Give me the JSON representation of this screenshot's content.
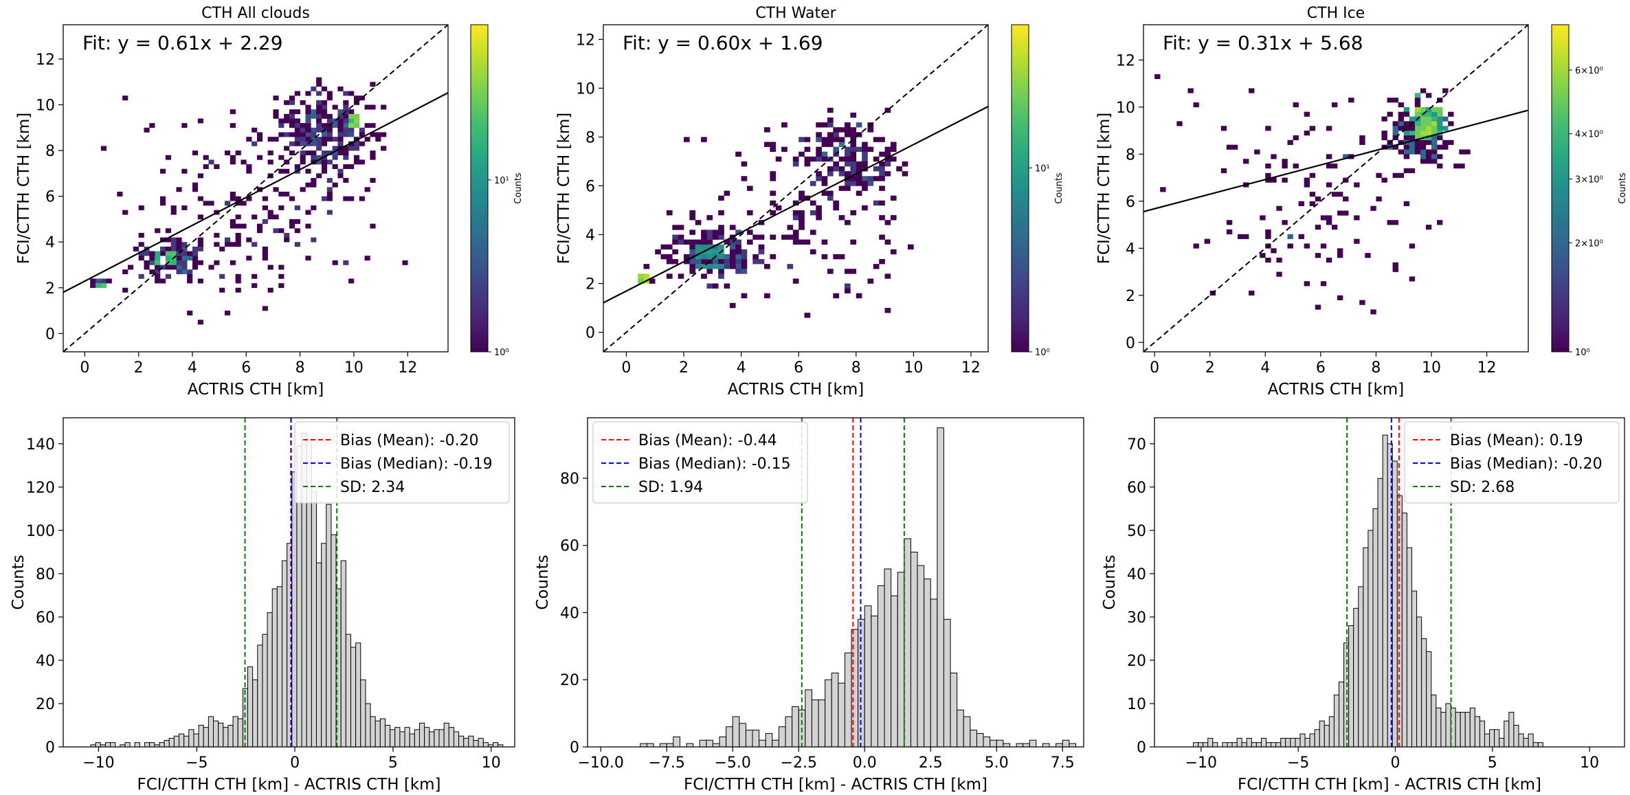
{
  "chart_data": [
    {
      "type": "heatmap",
      "title": "CTH All clouds",
      "xlabel": "ACTRIS CTH [km]",
      "ylabel": "FCI/CTTH CTH [km]",
      "xlim": [
        -0.8,
        13.5
      ],
      "ylim": [
        -0.8,
        13.5
      ],
      "xticks": [
        0,
        2,
        4,
        6,
        8,
        10,
        12
      ],
      "yticks": [
        0,
        2,
        4,
        6,
        8,
        10,
        12
      ],
      "fit_text": "Fit: y = 0.61x + 2.29",
      "fit": {
        "slope": 0.61,
        "intercept": 2.29
      },
      "one_to_one_line": true,
      "colorbar": {
        "label": "Counts",
        "scale": "log",
        "ticks": [
          "10⁰",
          "10¹"
        ],
        "tick_values": [
          1,
          10
        ],
        "max": 80
      },
      "dense_regions": [
        {
          "x": [
            9.8,
            10.2
          ],
          "y": [
            9.2,
            9.6
          ],
          "count": 40
        },
        {
          "x": [
            2.8,
            3.4
          ],
          "y": [
            3.0,
            3.6
          ],
          "count": 25
        },
        {
          "x": [
            0.4,
            0.8
          ],
          "y": [
            2.1,
            2.3
          ],
          "count": 40
        }
      ]
    },
    {
      "type": "heatmap",
      "title": "CTH Water",
      "xlabel": "ACTRIS CTH [km]",
      "ylabel": "FCI/CTTH CTH [km]",
      "xlim": [
        -0.8,
        12.6
      ],
      "ylim": [
        -0.8,
        12.6
      ],
      "xticks": [
        0,
        2,
        4,
        6,
        8,
        10,
        12
      ],
      "yticks": [
        0,
        2,
        4,
        6,
        8,
        10,
        12
      ],
      "fit_text": "Fit: y = 0.60x + 1.69",
      "fit": {
        "slope": 0.6,
        "intercept": 1.69
      },
      "one_to_one_line": true,
      "colorbar": {
        "label": "Counts",
        "scale": "log",
        "ticks": [
          "10⁰",
          "10¹"
        ],
        "tick_values": [
          1,
          10
        ],
        "max": 60
      },
      "dense_regions": [
        {
          "x": [
            0.4,
            0.8
          ],
          "y": [
            2.0,
            2.3
          ],
          "count": 50
        },
        {
          "x": [
            2.5,
            3.5
          ],
          "y": [
            2.8,
            3.5
          ],
          "count": 12
        }
      ]
    },
    {
      "type": "heatmap",
      "title": "CTH Ice",
      "xlabel": "ACTRIS CTH [km]",
      "ylabel": "FCI/CTTH CTH [km]",
      "xlim": [
        -0.4,
        13.5
      ],
      "ylim": [
        -0.4,
        13.5
      ],
      "xticks": [
        0,
        2,
        4,
        6,
        8,
        10,
        12
      ],
      "yticks": [
        0,
        2,
        4,
        6,
        8,
        10,
        12
      ],
      "fit_text": "Fit: y = 0.31x + 5.68",
      "fit": {
        "slope": 0.31,
        "intercept": 5.68
      },
      "one_to_one_line": true,
      "colorbar": {
        "label": "Counts",
        "scale": "log",
        "ticks": [
          "10⁰",
          "2×10⁰",
          "3×10⁰",
          "4×10⁰",
          "6×10⁰"
        ],
        "tick_values": [
          1,
          2,
          3,
          4,
          6
        ],
        "max": 8
      },
      "dense_regions": [
        {
          "x": [
            9.6,
            10.4
          ],
          "y": [
            8.8,
            10.0
          ],
          "count": 6
        }
      ]
    },
    {
      "type": "bar",
      "xlabel": "FCI/CTTH CTH [km] - ACTRIS CTH [km]",
      "ylabel": "Counts",
      "xlim": [
        -11.8,
        11.2
      ],
      "ylim": [
        0,
        152
      ],
      "xticks": [
        -10,
        -5,
        0,
        5,
        10
      ],
      "yticks": [
        0,
        20,
        40,
        60,
        80,
        100,
        120,
        140
      ],
      "bin_start": -10.4,
      "bin_width": 0.25,
      "values": [
        1,
        2,
        1,
        2,
        2,
        0,
        1,
        2,
        0,
        2,
        0,
        2,
        2,
        1,
        2,
        3,
        4,
        5,
        6,
        5,
        8,
        6,
        10,
        9,
        14,
        12,
        11,
        9,
        10,
        14,
        13,
        27,
        37,
        31,
        47,
        52,
        62,
        73,
        74,
        86,
        94,
        127,
        139,
        145,
        142,
        118,
        85,
        94,
        112,
        98,
        73,
        86,
        52,
        46,
        48,
        31,
        20,
        14,
        12,
        13,
        10,
        8,
        9,
        7,
        9,
        6,
        8,
        11,
        9,
        7,
        8,
        8,
        11,
        9,
        7,
        5,
        4,
        5,
        3,
        4,
        2,
        1,
        2,
        1
      ],
      "lines": [
        {
          "name": "Bias (Mean): -0.20",
          "x": -0.2,
          "color": "#ff0000"
        },
        {
          "name": "Bias (Median): -0.19",
          "x": -0.19,
          "color": "#0000ff"
        },
        {
          "name": "SD: 2.34",
          "x": [
            -2.54,
            2.14
          ],
          "color": "#008000"
        }
      ],
      "legend": "upper right"
    },
    {
      "type": "bar",
      "xlabel": "FCI/CTTH CTH [km] - ACTRIS CTH [km]",
      "ylabel": "Counts",
      "xlim": [
        -10.5,
        8.3
      ],
      "ylim": [
        0,
        98
      ],
      "xticks": [
        -10.0,
        -7.5,
        -5.0,
        -2.5,
        0.0,
        2.5,
        5.0,
        7.5
      ],
      "xtick_labels": [
        "−10.0",
        "−7.5",
        "−5.0",
        "−2.5",
        "0.0",
        "2.5",
        "5.0",
        "7.5"
      ],
      "yticks": [
        0,
        20,
        40,
        60,
        80
      ],
      "bin_start": -8.5,
      "bin_width": 0.25,
      "values": [
        1,
        1,
        0,
        1,
        1,
        3,
        0,
        1,
        0,
        2,
        2,
        1,
        3,
        6,
        9,
        7,
        5,
        5,
        2,
        4,
        2,
        6,
        9,
        12,
        11,
        17,
        14,
        14,
        20,
        22,
        19,
        28,
        35,
        38,
        42,
        39,
        48,
        53,
        45,
        52,
        62,
        58,
        54,
        50,
        44,
        95,
        38,
        22,
        11,
        9,
        5,
        4,
        3,
        2,
        2,
        1,
        0,
        1,
        1,
        2,
        0,
        1,
        0,
        1,
        2,
        1
      ],
      "lines": [
        {
          "name": "Bias (Mean): -0.44",
          "x": -0.44,
          "color": "#ff0000"
        },
        {
          "name": "Bias (Median): -0.15",
          "x": -0.15,
          "color": "#0000ff"
        },
        {
          "name": "SD: 1.94",
          "x": [
            -2.38,
            1.5
          ],
          "color": "#008000"
        }
      ],
      "legend": "upper left"
    },
    {
      "type": "bar",
      "xlabel": "FCI/CTTH CTH [km] - ACTRIS CTH [km]",
      "ylabel": "Counts",
      "xlim": [
        -12.4,
        11.8
      ],
      "ylim": [
        0,
        76
      ],
      "xticks": [
        -10,
        -5,
        0,
        5,
        10
      ],
      "yticks": [
        0,
        10,
        20,
        30,
        40,
        50,
        60,
        70
      ],
      "bin_start": -10.4,
      "bin_width": 0.25,
      "values": [
        1,
        1,
        1,
        2,
        1,
        0,
        1,
        1,
        1,
        2,
        1,
        2,
        1,
        1,
        2,
        1,
        1,
        1,
        2,
        2,
        2,
        2,
        3,
        2,
        3,
        4,
        6,
        5,
        7,
        12,
        15,
        24,
        28,
        32,
        37,
        46,
        50,
        55,
        62,
        72,
        70,
        66,
        58,
        54,
        46,
        36,
        30,
        25,
        22,
        12,
        9,
        8,
        10,
        9,
        8,
        8,
        8,
        9,
        7,
        6,
        3,
        4,
        4,
        2,
        6,
        8,
        5,
        3,
        2,
        3,
        1,
        1
      ],
      "lines": [
        {
          "name": "Bias (Mean): 0.19",
          "x": 0.19,
          "color": "#ff0000"
        },
        {
          "name": "Bias (Median): -0.20",
          "x": -0.2,
          "color": "#0000ff"
        },
        {
          "name": "SD: 2.68",
          "x": [
            -2.49,
            2.87
          ],
          "color": "#008000"
        }
      ],
      "legend": "upper right"
    }
  ]
}
